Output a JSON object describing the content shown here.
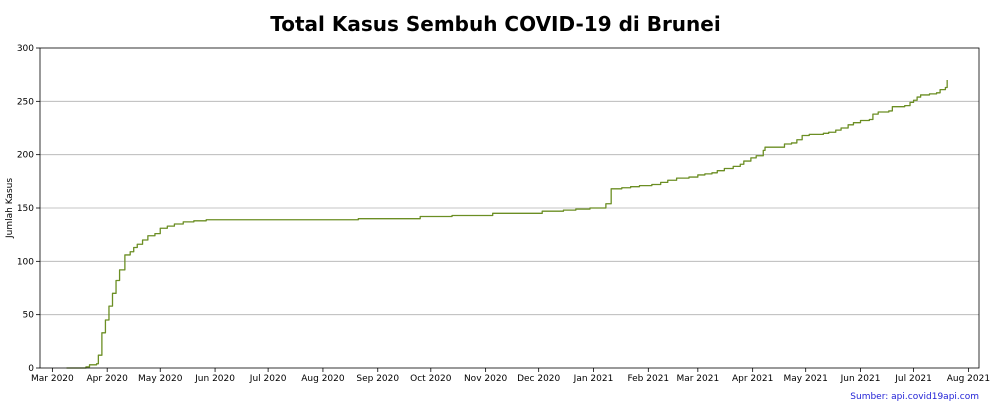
{
  "chart_data": {
    "type": "line",
    "title": "Total Kasus Sembuh COVID-19 di Brunei",
    "xlabel": "",
    "ylabel": "Jumlah Kasus",
    "source": "Sumber: api.covid19api.com",
    "ylim": [
      0,
      300
    ],
    "xlim": [
      "2020-02-23",
      "2021-08-07"
    ],
    "grid": "horizontal",
    "line_color": "#6b8e23",
    "x_ticks": [
      {
        "date": "2020-03-01",
        "label": "Mar 2020"
      },
      {
        "date": "2020-04-01",
        "label": "Apr 2020"
      },
      {
        "date": "2020-05-01",
        "label": "May 2020"
      },
      {
        "date": "2020-06-01",
        "label": "Jun 2020"
      },
      {
        "date": "2020-07-01",
        "label": "Jul 2020"
      },
      {
        "date": "2020-08-01",
        "label": "Aug 2020"
      },
      {
        "date": "2020-09-01",
        "label": "Sep 2020"
      },
      {
        "date": "2020-10-01",
        "label": "Oct 2020"
      },
      {
        "date": "2020-11-01",
        "label": "Nov 2020"
      },
      {
        "date": "2020-12-01",
        "label": "Dec 2020"
      },
      {
        "date": "2021-01-01",
        "label": "Jan 2021"
      },
      {
        "date": "2021-02-01",
        "label": "Feb 2021"
      },
      {
        "date": "2021-03-01",
        "label": "Mar 2021"
      },
      {
        "date": "2021-04-01",
        "label": "Apr 2021"
      },
      {
        "date": "2021-05-01",
        "label": "May 2021"
      },
      {
        "date": "2021-06-01",
        "label": "Jun 2021"
      },
      {
        "date": "2021-07-01",
        "label": "Jul 2021"
      },
      {
        "date": "2021-08-01",
        "label": "Aug 2021"
      }
    ],
    "y_ticks": [
      0,
      50,
      100,
      150,
      200,
      250,
      300
    ],
    "series": [
      {
        "points": [
          [
            "2020-03-09",
            0
          ],
          [
            "2020-03-20",
            1
          ],
          [
            "2020-03-22",
            3
          ],
          [
            "2020-03-26",
            4
          ],
          [
            "2020-03-27",
            12
          ],
          [
            "2020-03-29",
            33
          ],
          [
            "2020-03-31",
            45
          ],
          [
            "2020-04-02",
            58
          ],
          [
            "2020-04-04",
            70
          ],
          [
            "2020-04-06",
            82
          ],
          [
            "2020-04-08",
            92
          ],
          [
            "2020-04-11",
            106
          ],
          [
            "2020-04-14",
            109
          ],
          [
            "2020-04-16",
            113
          ],
          [
            "2020-04-18",
            116
          ],
          [
            "2020-04-21",
            120
          ],
          [
            "2020-04-24",
            124
          ],
          [
            "2020-04-28",
            126
          ],
          [
            "2020-05-01",
            131
          ],
          [
            "2020-05-05",
            133
          ],
          [
            "2020-05-09",
            135
          ],
          [
            "2020-05-14",
            137
          ],
          [
            "2020-05-20",
            138
          ],
          [
            "2020-05-27",
            139
          ],
          [
            "2020-08-20",
            139
          ],
          [
            "2020-08-21",
            140
          ],
          [
            "2020-09-24",
            140
          ],
          [
            "2020-09-25",
            142
          ],
          [
            "2020-10-12",
            142
          ],
          [
            "2020-10-13",
            143
          ],
          [
            "2020-11-02",
            143
          ],
          [
            "2020-11-05",
            145
          ],
          [
            "2020-11-30",
            145
          ],
          [
            "2020-12-03",
            147
          ],
          [
            "2020-12-15",
            148
          ],
          [
            "2020-12-22",
            149
          ],
          [
            "2020-12-30",
            150
          ],
          [
            "2021-01-06",
            150
          ],
          [
            "2021-01-08",
            154
          ],
          [
            "2021-01-10",
            154
          ],
          [
            "2021-01-11",
            168
          ],
          [
            "2021-01-17",
            169
          ],
          [
            "2021-01-22",
            170
          ],
          [
            "2021-01-27",
            171
          ],
          [
            "2021-02-03",
            172
          ],
          [
            "2021-02-08",
            174
          ],
          [
            "2021-02-12",
            176
          ],
          [
            "2021-02-17",
            178
          ],
          [
            "2021-02-24",
            179
          ],
          [
            "2021-03-01",
            181
          ],
          [
            "2021-03-05",
            182
          ],
          [
            "2021-03-09",
            183
          ],
          [
            "2021-03-12",
            185
          ],
          [
            "2021-03-16",
            187
          ],
          [
            "2021-03-21",
            189
          ],
          [
            "2021-03-25",
            191
          ],
          [
            "2021-03-27",
            194
          ],
          [
            "2021-03-31",
            197
          ],
          [
            "2021-04-03",
            199
          ],
          [
            "2021-04-07",
            204
          ],
          [
            "2021-04-08",
            207
          ],
          [
            "2021-04-17",
            207
          ],
          [
            "2021-04-19",
            210
          ],
          [
            "2021-04-23",
            211
          ],
          [
            "2021-04-26",
            214
          ],
          [
            "2021-04-29",
            218
          ],
          [
            "2021-05-03",
            219
          ],
          [
            "2021-05-11",
            220
          ],
          [
            "2021-05-14",
            221
          ],
          [
            "2021-05-18",
            223
          ],
          [
            "2021-05-21",
            225
          ],
          [
            "2021-05-25",
            228
          ],
          [
            "2021-05-28",
            230
          ],
          [
            "2021-06-01",
            232
          ],
          [
            "2021-06-06",
            233
          ],
          [
            "2021-06-08",
            238
          ],
          [
            "2021-06-11",
            240
          ],
          [
            "2021-06-17",
            241
          ],
          [
            "2021-06-19",
            245
          ],
          [
            "2021-06-26",
            246
          ],
          [
            "2021-06-29",
            249
          ],
          [
            "2021-07-01",
            251
          ],
          [
            "2021-07-03",
            254
          ],
          [
            "2021-07-05",
            256
          ],
          [
            "2021-07-10",
            257
          ],
          [
            "2021-07-14",
            258
          ],
          [
            "2021-07-16",
            261
          ],
          [
            "2021-07-19",
            263
          ],
          [
            "2021-07-20",
            270
          ]
        ]
      }
    ]
  }
}
